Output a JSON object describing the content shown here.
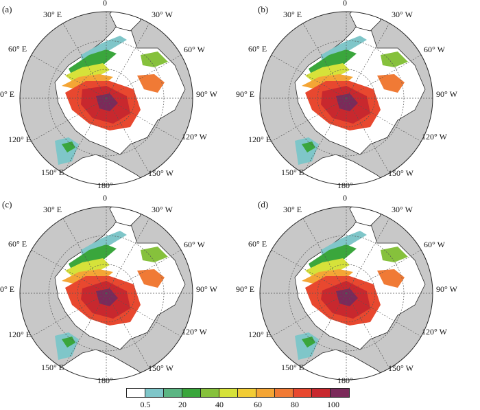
{
  "figure": {
    "panels": [
      {
        "label": "(a)"
      },
      {
        "label": "(b)"
      },
      {
        "label": "(c)"
      },
      {
        "label": "(d)"
      }
    ],
    "longitude_labels": {
      "lon_0": "0",
      "lon_30e": "30° E",
      "lon_30w": "30° W",
      "lon_60e": "60° E",
      "lon_60w": "60° W",
      "lon_90e": "90° E",
      "lon_90w": "90° W",
      "lon_120e": "120° E",
      "lon_120w": "120° W",
      "lon_150e": "150° E",
      "lon_150w": "150° W",
      "lon_180": "180°"
    },
    "colors": {
      "land": "#c8c8c8",
      "ocean": "#ffffff",
      "coast": "#222222",
      "grid": "#555555"
    }
  },
  "colorbar": {
    "colors": [
      "#ffffff",
      "#7fc6c9",
      "#5bb583",
      "#3aa63c",
      "#86c13c",
      "#d6e23a",
      "#f2cc35",
      "#f4a535",
      "#f07a35",
      "#e8482f",
      "#c8282e",
      "#7b2a5a"
    ],
    "ticks": [
      "0.5",
      "20",
      "40",
      "60",
      "80",
      "100"
    ]
  }
}
